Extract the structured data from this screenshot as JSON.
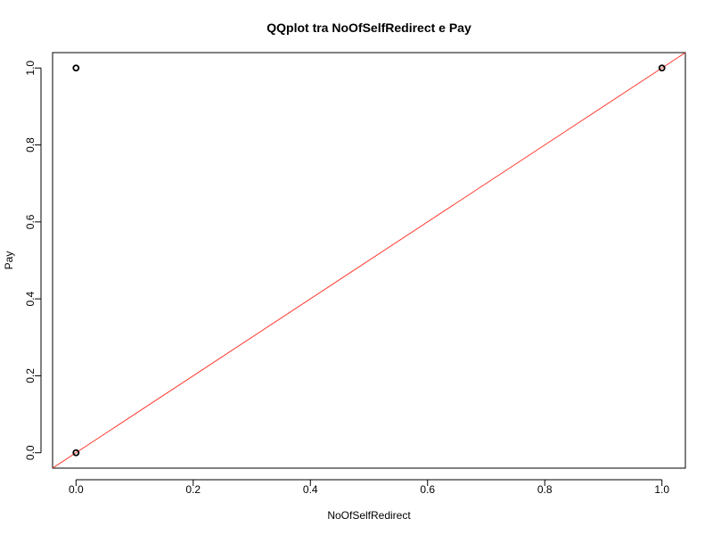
{
  "chart_data": {
    "type": "scatter",
    "title": "QQplot tra NoOfSelfRedirect e Pay",
    "xlabel": "NoOfSelfRedirect",
    "ylabel": "Pay",
    "xlim": [
      -0.04,
      1.04
    ],
    "ylim": [
      -0.04,
      1.04
    ],
    "x_ticks": [
      0.0,
      0.2,
      0.4,
      0.6,
      0.8,
      1.0
    ],
    "y_ticks": [
      0.0,
      0.2,
      0.4,
      0.6,
      0.8,
      1.0
    ],
    "x_tick_labels": [
      "0.0",
      "0.2",
      "0.4",
      "0.6",
      "0.8",
      "1.0"
    ],
    "y_tick_labels": [
      "0.0",
      "0.2",
      "0.4",
      "0.6",
      "0.8",
      "1.0"
    ],
    "points": [
      {
        "x": 0,
        "y": 0
      },
      {
        "x": 0,
        "y": 1
      },
      {
        "x": 1,
        "y": 1
      }
    ],
    "reference_line": {
      "intercept": 0,
      "slope": 1,
      "color": "#ff3b30"
    },
    "point_color": "#000000",
    "grid": false
  }
}
